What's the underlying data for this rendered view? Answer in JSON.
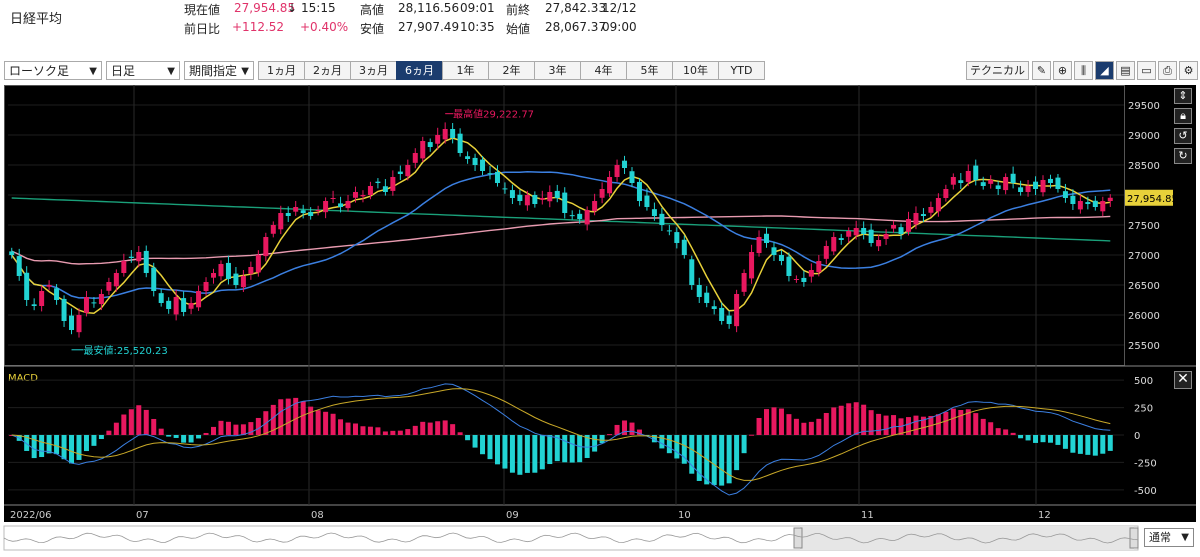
{
  "header": {
    "name": "日経平均",
    "current_label": "現在値",
    "current_value": "27,954.85",
    "current_arrow": "↓",
    "current_time": "15:15",
    "change_label": "前日比",
    "change_value": "+112.52",
    "change_pct": "+0.40%",
    "high_label": "高値",
    "high_value": "28,116.56",
    "high_time": "09:01",
    "low_label": "安値",
    "low_value": "27,907.49",
    "low_time": "10:35",
    "prev_label": "前終",
    "prev_value": "27,842.33",
    "prev_date": "12/12",
    "open_label": "始値",
    "open_value": "28,067.37",
    "open_time": "09:00"
  },
  "toolbar": {
    "chart_type": "ローソク足",
    "interval": "日足",
    "period_select": "期間指定",
    "periods": [
      "1ヵ月",
      "2ヵ月",
      "3ヵ月",
      "6ヵ月",
      "1年",
      "2年",
      "3年",
      "4年",
      "5年",
      "10年",
      "YTD"
    ],
    "active_period": "6ヵ月",
    "technical_label": "テクニカル",
    "tool_icons": [
      "pencil-icon",
      "zoom-icon",
      "bar-chart-icon",
      "line-chart-icon",
      "save-icon",
      "folder-icon",
      "print-icon",
      "settings-icon"
    ]
  },
  "chart_data": {
    "type": "candlestick",
    "price_ticks": [
      29500,
      29000,
      28500,
      28000,
      27500,
      27000,
      26500,
      26000,
      25500
    ],
    "price_range": [
      25200,
      29800
    ],
    "x_labels": [
      "2022/06",
      "07",
      "08",
      "09",
      "10",
      "11",
      "12"
    ],
    "last_price_label": "27,954.85",
    "max_annotation": "最高値29,222.77",
    "min_annotation": "最安値:25,520.23",
    "macd_label": "MACD",
    "macd_ticks": [
      500,
      250,
      0,
      -250,
      -500
    ],
    "macd_range": [
      -620,
      620
    ],
    "colors": {
      "up": "#e8185f",
      "down": "#22d3d3",
      "ma_short": "#e8d13a",
      "ma_mid": "#3b7fe0",
      "ma_long": "#e89bb0",
      "ma_xlong": "#1aa07a",
      "macd": "#3b7fe0",
      "signal": "#c8a828"
    },
    "closes": [
      27000,
      26650,
      26250,
      26150,
      26400,
      26500,
      26250,
      25900,
      25750,
      26000,
      26300,
      26200,
      26350,
      26550,
      26700,
      26900,
      26950,
      27050,
      26700,
      26400,
      26200,
      26100,
      26300,
      26050,
      26200,
      26400,
      26550,
      26700,
      26850,
      26600,
      26500,
      26650,
      26800,
      27000,
      27300,
      27500,
      27700,
      27650,
      27800,
      27700,
      27650,
      27750,
      27900,
      27950,
      27800,
      27900,
      28050,
      28000,
      28150,
      28200,
      28050,
      28300,
      28350,
      28500,
      28700,
      28900,
      28800,
      29000,
      29100,
      28950,
      28700,
      28600,
      28500,
      28400,
      28350,
      28200,
      28100,
      27950,
      27900,
      28000,
      27850,
      27950,
      28050,
      27950,
      27700,
      27650,
      27600,
      27750,
      27900,
      28100,
      28300,
      28500,
      28450,
      28200,
      27900,
      27800,
      27650,
      27500,
      27400,
      27200,
      27000,
      26500,
      26300,
      26200,
      26100,
      25900,
      25850,
      26350,
      26700,
      27050,
      27300,
      27200,
      27000,
      26900,
      26650,
      26600,
      26550,
      26750,
      26900,
      27150,
      27300,
      27250,
      27400,
      27450,
      27350,
      27200,
      27250,
      27350,
      27500,
      27350,
      27600,
      27700,
      27650,
      27800,
      27950,
      28100,
      28300,
      28200,
      28400,
      28250,
      28150,
      28250,
      28100,
      28300,
      28200,
      28050,
      28150,
      28100,
      28250,
      28200,
      28100,
      27950,
      27850,
      27900,
      27850,
      27800,
      27900,
      27954
    ]
  },
  "nav": {
    "speed_select": "通常"
  }
}
